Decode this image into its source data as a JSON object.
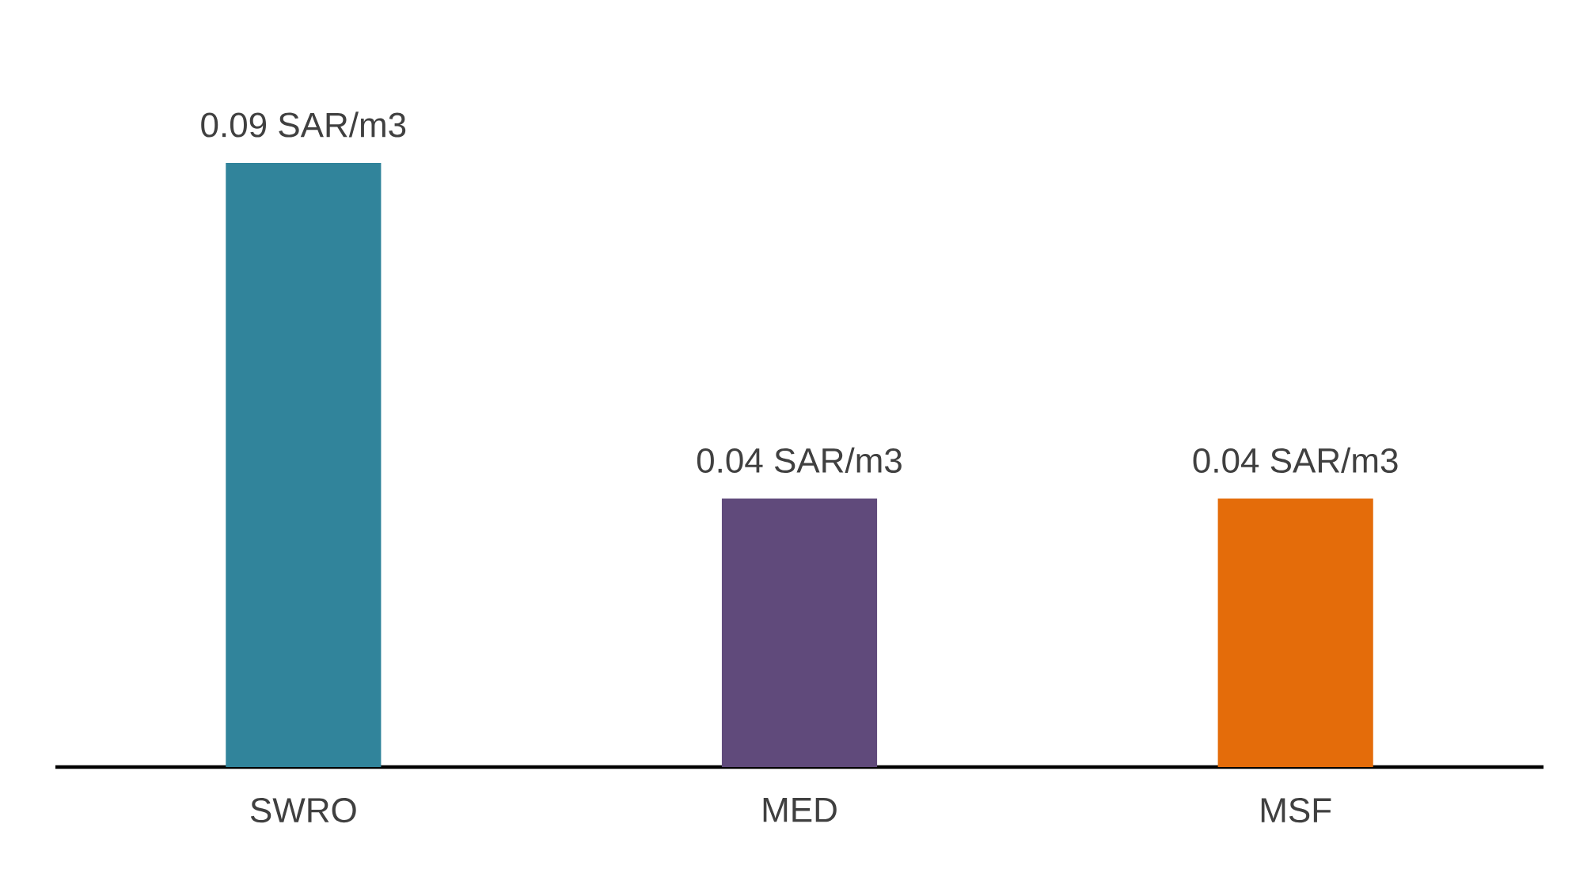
{
  "chart_data": {
    "type": "bar",
    "categories": [
      "SWRO",
      "MED",
      "MSF"
    ],
    "values": [
      0.09,
      0.04,
      0.04
    ],
    "colors": [
      "#31849b",
      "#604a7b",
      "#e46c0a"
    ],
    "value_labels": [
      "0.09 SAR/m3",
      "0.04 SAR/m3",
      "0.04 SAR/m3"
    ]
  }
}
